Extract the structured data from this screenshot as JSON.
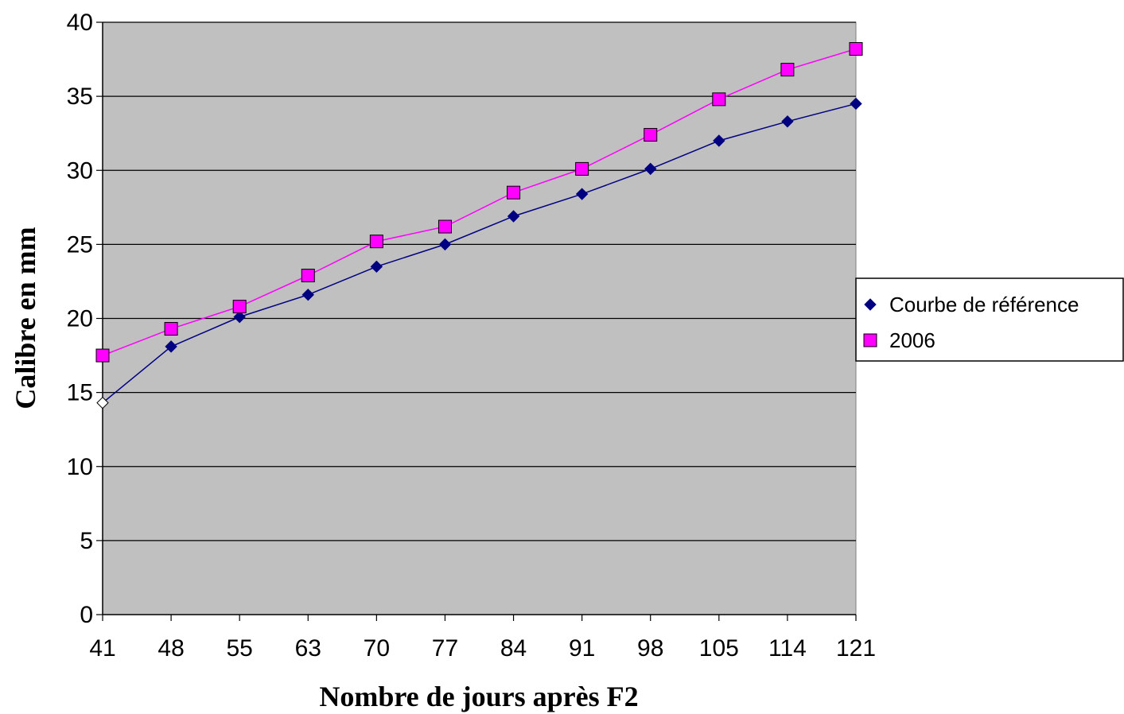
{
  "chart_data": {
    "type": "line",
    "title": "",
    "xlabel": "Nombre de jours après F2",
    "ylabel": "Calibre en mm",
    "categories": [
      "41",
      "48",
      "55",
      "63",
      "70",
      "77",
      "84",
      "91",
      "98",
      "105",
      "114",
      "121"
    ],
    "ylim": [
      0,
      40
    ],
    "yticks": [
      "0",
      "5",
      "10",
      "15",
      "20",
      "25",
      "30",
      "35",
      "40"
    ],
    "grid": "horizontal",
    "legend_position": "right",
    "plot_background": "#c0c0c0",
    "series": [
      {
        "name": "Courbe de référence",
        "values": [
          14.3,
          18.1,
          20.1,
          21.6,
          23.5,
          25.0,
          26.9,
          28.4,
          30.1,
          32.0,
          33.3,
          34.5
        ],
        "line_color": "#000080",
        "marker": "diamond",
        "marker_color": "#000080"
      },
      {
        "name": "2006",
        "values": [
          17.5,
          19.3,
          20.8,
          22.9,
          25.2,
          26.2,
          28.5,
          30.1,
          32.4,
          34.8,
          36.8,
          38.2
        ],
        "line_color": "#ff00ff",
        "marker": "square",
        "marker_color": "#ff00ff"
      }
    ]
  }
}
